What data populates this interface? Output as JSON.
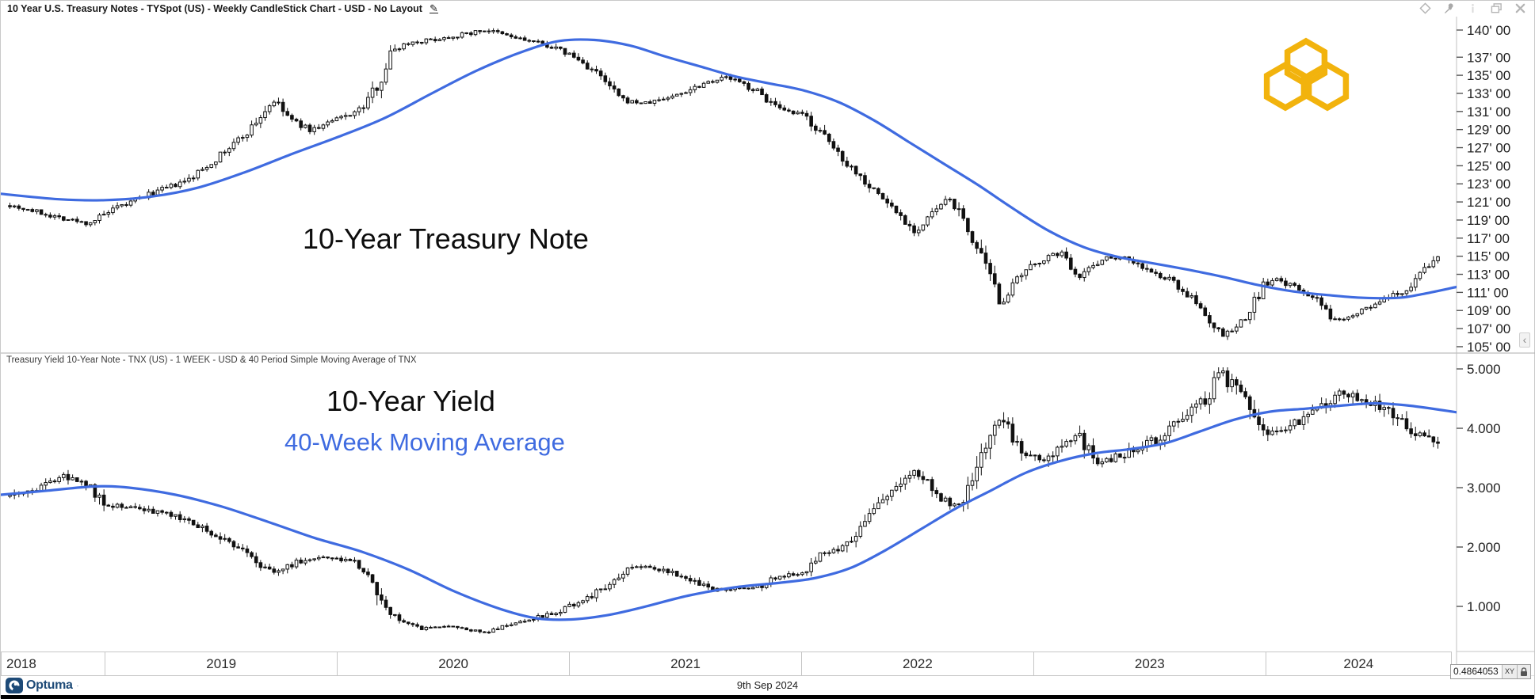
{
  "window": {
    "title": "10 Year U.S. Treasury Notes - TYSpot (US) - Weekly CandleStick Chart - USD - No Layout"
  },
  "panel1": {
    "annotation": "10-Year Treasury Note"
  },
  "panel2": {
    "title": "Treasury Yield 10-Year Note - TNX (US) - 1 WEEK - USD & 40 Period Simple Moving Average of TNX",
    "annotation": "10-Year Yield",
    "ma_annotation": "40-Week Moving Average"
  },
  "x_axis": {
    "years": [
      "2018",
      "2019",
      "2020",
      "2021",
      "2022",
      "2023",
      "2024"
    ]
  },
  "statusbar": {
    "brand": "Optuma",
    "date": "9th Sep 2024",
    "crosshair_value": "0.4864053",
    "xy_label": "XY"
  },
  "colors": {
    "ma_blue": "#3f6be0",
    "candle": "#111111",
    "logo_gold": "#F2B30D",
    "brand_navy": "#1d4a77"
  },
  "chart_data": [
    {
      "type": "candlestick",
      "name": "10 Year U.S. Treasury Notes (TYSpot US, weekly)",
      "overlay": "40-week simple moving average",
      "x_range_years": [
        2018.55,
        2024.8
      ],
      "bars_start": 2018.57,
      "bars_end": 2024.72,
      "ylim": [
        104.47,
        141.31
      ],
      "y_ticks": [
        {
          "v": 140,
          "label": "140' 00"
        },
        {
          "v": 137,
          "label": "137' 00"
        },
        {
          "v": 135,
          "label": "135' 00"
        },
        {
          "v": 133,
          "label": "133' 00"
        },
        {
          "v": 131,
          "label": "131' 00"
        },
        {
          "v": 129,
          "label": "129' 00"
        },
        {
          "v": 127,
          "label": "127' 00"
        },
        {
          "v": 125,
          "label": "125' 00"
        },
        {
          "v": 123,
          "label": "123' 00"
        },
        {
          "v": 121,
          "label": "121' 00"
        },
        {
          "v": 119,
          "label": "119' 00"
        },
        {
          "v": 117,
          "label": "117' 00"
        },
        {
          "v": 115,
          "label": "115' 00"
        },
        {
          "v": 113,
          "label": "113' 00"
        },
        {
          "v": 111,
          "label": "111' 00"
        },
        {
          "v": 109,
          "label": "109' 00"
        },
        {
          "v": 107,
          "label": "107' 00"
        },
        {
          "v": 105,
          "label": "105' 00"
        }
      ],
      "close_keyframes": [
        [
          2018.57,
          120.8
        ],
        [
          2018.75,
          119.6
        ],
        [
          2018.92,
          118.6
        ],
        [
          2019.05,
          120.3
        ],
        [
          2019.2,
          122.0
        ],
        [
          2019.35,
          123.3
        ],
        [
          2019.5,
          126.3
        ],
        [
          2019.62,
          129.0
        ],
        [
          2019.72,
          132.2
        ],
        [
          2019.8,
          130.0
        ],
        [
          2019.88,
          128.9
        ],
        [
          2020.0,
          130.2
        ],
        [
          2020.1,
          131.3
        ],
        [
          2020.18,
          134.5
        ],
        [
          2020.23,
          137.8
        ],
        [
          2020.3,
          138.6
        ],
        [
          2020.42,
          139.0
        ],
        [
          2020.55,
          139.6
        ],
        [
          2020.63,
          140.0
        ],
        [
          2020.75,
          139.2
        ],
        [
          2020.9,
          138.3
        ],
        [
          2021.0,
          137.2
        ],
        [
          2021.1,
          135.4
        ],
        [
          2021.22,
          132.2
        ],
        [
          2021.32,
          131.9
        ],
        [
          2021.45,
          132.8
        ],
        [
          2021.58,
          134.3
        ],
        [
          2021.67,
          134.8
        ],
        [
          2021.8,
          133.2
        ],
        [
          2021.9,
          131.0
        ],
        [
          2022.0,
          130.6
        ],
        [
          2022.08,
          128.3
        ],
        [
          2022.18,
          125.4
        ],
        [
          2022.3,
          122.3
        ],
        [
          2022.4,
          119.8
        ],
        [
          2022.48,
          117.6
        ],
        [
          2022.57,
          120.3
        ],
        [
          2022.63,
          121.4
        ],
        [
          2022.72,
          117.0
        ],
        [
          2022.8,
          112.4
        ],
        [
          2022.84,
          109.8
        ],
        [
          2022.92,
          112.5
        ],
        [
          2023.0,
          114.4
        ],
        [
          2023.1,
          115.4
        ],
        [
          2023.18,
          112.8
        ],
        [
          2023.28,
          114.8
        ],
        [
          2023.38,
          114.9
        ],
        [
          2023.5,
          113.0
        ],
        [
          2023.58,
          112.3
        ],
        [
          2023.65,
          110.6
        ],
        [
          2023.72,
          108.6
        ],
        [
          2023.79,
          106.2
        ],
        [
          2023.84,
          106.8
        ],
        [
          2023.9,
          108.3
        ],
        [
          2023.97,
          111.8
        ],
        [
          2024.03,
          112.4
        ],
        [
          2024.1,
          111.6
        ],
        [
          2024.18,
          110.6
        ],
        [
          2024.27,
          107.9
        ],
        [
          2024.33,
          108.4
        ],
        [
          2024.42,
          109.3
        ],
        [
          2024.5,
          110.3
        ],
        [
          2024.58,
          111.2
        ],
        [
          2024.65,
          113.2
        ],
        [
          2024.72,
          114.9
        ]
      ],
      "ma_keyframes": [
        [
          2018.55,
          121.9
        ],
        [
          2018.8,
          121.3
        ],
        [
          2019.0,
          121.2
        ],
        [
          2019.2,
          121.6
        ],
        [
          2019.4,
          122.6
        ],
        [
          2019.6,
          124.3
        ],
        [
          2019.8,
          126.3
        ],
        [
          2020.0,
          128.2
        ],
        [
          2020.2,
          130.3
        ],
        [
          2020.4,
          133.0
        ],
        [
          2020.6,
          135.6
        ],
        [
          2020.8,
          137.7
        ],
        [
          2020.95,
          138.8
        ],
        [
          2021.1,
          138.9
        ],
        [
          2021.25,
          138.3
        ],
        [
          2021.4,
          137.1
        ],
        [
          2021.55,
          136.0
        ],
        [
          2021.7,
          134.9
        ],
        [
          2021.85,
          134.1
        ],
        [
          2022.0,
          133.3
        ],
        [
          2022.15,
          132.0
        ],
        [
          2022.3,
          130.0
        ],
        [
          2022.45,
          127.6
        ],
        [
          2022.6,
          125.2
        ],
        [
          2022.75,
          122.8
        ],
        [
          2022.9,
          120.2
        ],
        [
          2023.05,
          117.8
        ],
        [
          2023.2,
          116.0
        ],
        [
          2023.35,
          114.9
        ],
        [
          2023.5,
          114.2
        ],
        [
          2023.65,
          113.5
        ],
        [
          2023.8,
          112.7
        ],
        [
          2023.95,
          111.8
        ],
        [
          2024.1,
          111.1
        ],
        [
          2024.25,
          110.7
        ],
        [
          2024.4,
          110.4
        ],
        [
          2024.55,
          110.4
        ],
        [
          2024.65,
          110.8
        ],
        [
          2024.8,
          111.6
        ]
      ],
      "volatility": {
        "base": 0.45,
        "trend": 1.2,
        "level": 0
      },
      "seed": 7
    },
    {
      "type": "candlestick",
      "name": "Treasury Yield 10-Year Note (TNX US, 1 week)",
      "overlay": "40 period simple moving average of TNX",
      "x_range_years": [
        2018.55,
        2024.8
      ],
      "bars_start": 2018.57,
      "bars_end": 2024.72,
      "ylim": [
        0.267,
        5.027
      ],
      "y_ticks": [
        {
          "v": 5,
          "label": "5.000"
        },
        {
          "v": 4,
          "label": "4.000"
        },
        {
          "v": 3,
          "label": "3.000"
        },
        {
          "v": 2,
          "label": "2.000"
        },
        {
          "v": 1,
          "label": "1.000"
        }
      ],
      "close_keyframes": [
        [
          2018.57,
          2.86
        ],
        [
          2018.7,
          3.0
        ],
        [
          2018.82,
          3.18
        ],
        [
          2018.92,
          3.05
        ],
        [
          2019.0,
          2.72
        ],
        [
          2019.1,
          2.68
        ],
        [
          2019.2,
          2.62
        ],
        [
          2019.3,
          2.5
        ],
        [
          2019.42,
          2.32
        ],
        [
          2019.55,
          2.05
        ],
        [
          2019.65,
          1.72
        ],
        [
          2019.73,
          1.55
        ],
        [
          2019.82,
          1.75
        ],
        [
          2019.95,
          1.82
        ],
        [
          2020.05,
          1.78
        ],
        [
          2020.13,
          1.58
        ],
        [
          2020.2,
          0.95
        ],
        [
          2020.28,
          0.72
        ],
        [
          2020.35,
          0.62
        ],
        [
          2020.45,
          0.68
        ],
        [
          2020.55,
          0.62
        ],
        [
          2020.63,
          0.56
        ],
        [
          2020.75,
          0.72
        ],
        [
          2020.85,
          0.82
        ],
        [
          2020.95,
          0.92
        ],
        [
          2021.05,
          1.1
        ],
        [
          2021.15,
          1.35
        ],
        [
          2021.25,
          1.62
        ],
        [
          2021.32,
          1.7
        ],
        [
          2021.42,
          1.58
        ],
        [
          2021.52,
          1.45
        ],
        [
          2021.6,
          1.28
        ],
        [
          2021.7,
          1.3
        ],
        [
          2021.8,
          1.32
        ],
        [
          2021.9,
          1.52
        ],
        [
          2022.0,
          1.58
        ],
        [
          2022.08,
          1.88
        ],
        [
          2022.17,
          2.0
        ],
        [
          2022.28,
          2.55
        ],
        [
          2022.38,
          2.9
        ],
        [
          2022.47,
          3.25
        ],
        [
          2022.52,
          3.1
        ],
        [
          2022.6,
          2.78
        ],
        [
          2022.66,
          2.68
        ],
        [
          2022.75,
          3.55
        ],
        [
          2022.83,
          4.15
        ],
        [
          2022.88,
          3.95
        ],
        [
          2022.95,
          3.6
        ],
        [
          2023.03,
          3.45
        ],
        [
          2023.1,
          3.7
        ],
        [
          2023.17,
          3.9
        ],
        [
          2023.25,
          3.45
        ],
        [
          2023.33,
          3.5
        ],
        [
          2023.42,
          3.65
        ],
        [
          2023.5,
          3.78
        ],
        [
          2023.58,
          4.05
        ],
        [
          2023.67,
          4.3
        ],
        [
          2023.74,
          4.6
        ],
        [
          2023.79,
          4.95
        ],
        [
          2023.85,
          4.65
        ],
        [
          2023.92,
          4.35
        ],
        [
          2024.0,
          3.88
        ],
        [
          2024.08,
          4.05
        ],
        [
          2024.15,
          4.18
        ],
        [
          2024.22,
          4.32
        ],
        [
          2024.3,
          4.65
        ],
        [
          2024.37,
          4.48
        ],
        [
          2024.45,
          4.42
        ],
        [
          2024.52,
          4.25
        ],
        [
          2024.6,
          4.0
        ],
        [
          2024.67,
          3.82
        ],
        [
          2024.72,
          3.72
        ]
      ],
      "ma_keyframes": [
        [
          2018.55,
          2.88
        ],
        [
          2018.75,
          2.95
        ],
        [
          2018.95,
          3.02
        ],
        [
          2019.1,
          3.0
        ],
        [
          2019.3,
          2.88
        ],
        [
          2019.5,
          2.68
        ],
        [
          2019.7,
          2.42
        ],
        [
          2019.9,
          2.15
        ],
        [
          2020.1,
          1.92
        ],
        [
          2020.3,
          1.62
        ],
        [
          2020.5,
          1.25
        ],
        [
          2020.7,
          0.95
        ],
        [
          2020.85,
          0.8
        ],
        [
          2021.0,
          0.78
        ],
        [
          2021.15,
          0.85
        ],
        [
          2021.3,
          0.98
        ],
        [
          2021.5,
          1.18
        ],
        [
          2021.7,
          1.32
        ],
        [
          2021.9,
          1.4
        ],
        [
          2022.05,
          1.48
        ],
        [
          2022.2,
          1.65
        ],
        [
          2022.35,
          1.95
        ],
        [
          2022.5,
          2.3
        ],
        [
          2022.65,
          2.65
        ],
        [
          2022.8,
          2.95
        ],
        [
          2022.95,
          3.25
        ],
        [
          2023.1,
          3.45
        ],
        [
          2023.25,
          3.58
        ],
        [
          2023.4,
          3.65
        ],
        [
          2023.55,
          3.75
        ],
        [
          2023.7,
          3.95
        ],
        [
          2023.85,
          4.15
        ],
        [
          2024.0,
          4.28
        ],
        [
          2024.15,
          4.33
        ],
        [
          2024.3,
          4.38
        ],
        [
          2024.45,
          4.42
        ],
        [
          2024.6,
          4.38
        ],
        [
          2024.8,
          4.27
        ]
      ],
      "volatility": {
        "base": 0.025,
        "trend": 1.5,
        "level": 0.03
      },
      "seed": 21
    }
  ]
}
